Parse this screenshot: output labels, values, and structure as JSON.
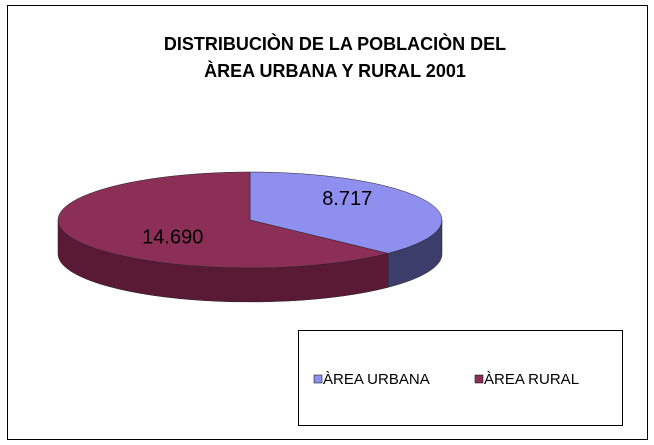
{
  "chart_data": {
    "type": "pie",
    "title": [
      "DISTRIBUCIÒN DE LA POBLACIÒN DEL",
      "ÀREA URBANA Y RURAL 2001"
    ],
    "categories": [
      "ÀREA URBANA",
      "ÀREA RURAL"
    ],
    "values": [
      8717,
      14690
    ],
    "value_labels": [
      "8.717",
      "14.690"
    ],
    "colors": [
      "#8f8fef",
      "#8b2f57"
    ],
    "side_colors": [
      "#3d3d6b",
      "#5a1a35"
    ],
    "legend": "bottom-right"
  }
}
